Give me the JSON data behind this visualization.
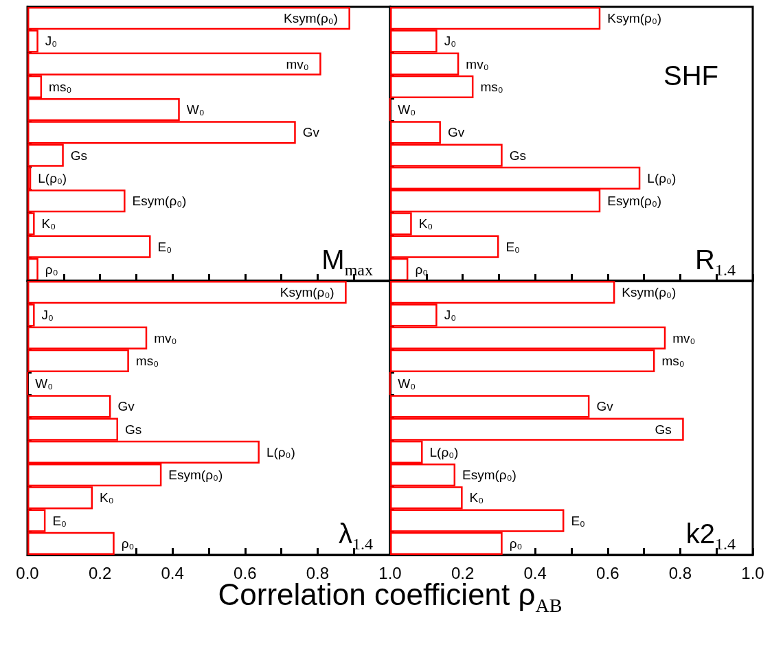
{
  "chart_data": [
    {
      "type": "bar",
      "orientation": "horizontal",
      "title": "M$_{max}$",
      "categories": [
        "Ksym(ρ₀)",
        "J₀",
        "mv₀",
        "ms₀",
        "W₀",
        "Gv",
        "Gs",
        "L(ρ₀)",
        "Esym(ρ₀)",
        "K₀",
        "E₀",
        "ρ₀"
      ],
      "values": [
        0.89,
        0.03,
        0.81,
        0.04,
        0.42,
        0.74,
        0.1,
        0.01,
        0.27,
        0.02,
        0.34,
        0.03
      ],
      "color": "#ff0000",
      "xlim": [
        0,
        1
      ],
      "xticks": [
        {
          "value": 0,
          "label": null
        },
        {
          "value": 0.1,
          "label": null
        },
        {
          "value": 0.2,
          "label": null
        },
        {
          "value": 0.3,
          "label": null
        },
        {
          "value": 0.4,
          "label": null
        },
        {
          "value": 0.5,
          "label": null
        },
        {
          "value": 0.6,
          "label": null
        },
        {
          "value": 0.7,
          "label": null
        },
        {
          "value": 0.8,
          "label": null
        },
        {
          "value": 0.9,
          "label": null
        },
        {
          "value": 1,
          "label": null
        }
      ],
      "tick_labels": false
    },
    {
      "type": "bar",
      "orientation": "horizontal",
      "title": "R$_{1.4}$",
      "annotations": [
        "SHF"
      ],
      "categories": [
        "Ksym(ρ₀)",
        "J₀",
        "mv₀",
        "ms₀",
        "W₀",
        "Gv",
        "Gs",
        "L(ρ₀)",
        "Esym(ρ₀)",
        "K₀",
        "E₀",
        "ρ₀"
      ],
      "values": [
        0.58,
        0.13,
        0.19,
        0.23,
        0.0,
        0.14,
        0.31,
        0.69,
        0.58,
        0.06,
        0.3,
        0.05
      ],
      "color": "#ff0000",
      "xlim": [
        0,
        1
      ],
      "xticks": [
        {
          "value": 0,
          "label": null
        },
        {
          "value": 0.1,
          "label": null
        },
        {
          "value": 0.2,
          "label": null
        },
        {
          "value": 0.3,
          "label": null
        },
        {
          "value": 0.4,
          "label": null
        },
        {
          "value": 0.5,
          "label": null
        },
        {
          "value": 0.6,
          "label": null
        },
        {
          "value": 0.7,
          "label": null
        },
        {
          "value": 0.8,
          "label": null
        },
        {
          "value": 0.9,
          "label": null
        },
        {
          "value": 1,
          "label": null
        }
      ],
      "tick_labels": false
    },
    {
      "type": "bar",
      "orientation": "horizontal",
      "title": "λ$_{1.4}$",
      "xlabel": "Correlation coefficient  ρ$_{AB}$",
      "categories": [
        "Ksym(ρ₀)",
        "J₀",
        "mv₀",
        "ms₀",
        "W₀",
        "Gv",
        "Gs",
        "L(ρ₀)",
        "Esym(ρ₀)",
        "K₀",
        "E₀",
        "ρ₀"
      ],
      "values": [
        0.88,
        0.02,
        0.33,
        0.28,
        0.0,
        0.23,
        0.25,
        0.64,
        0.37,
        0.18,
        0.05,
        0.24
      ],
      "color": "#ff0000",
      "xlim": [
        0,
        1
      ],
      "xticks": [
        {
          "value": 0,
          "label": "0.0"
        },
        {
          "value": 0.1,
          "label": null
        },
        {
          "value": 0.2,
          "label": "0.2"
        },
        {
          "value": 0.3,
          "label": null
        },
        {
          "value": 0.4,
          "label": "0.4"
        },
        {
          "value": 0.5,
          "label": null
        },
        {
          "value": 0.6,
          "label": "0.6"
        },
        {
          "value": 0.7,
          "label": null
        },
        {
          "value": 0.8,
          "label": "0.8"
        },
        {
          "value": 0.9,
          "label": null
        },
        {
          "value": 1,
          "label": "1.0"
        }
      ],
      "tick_labels": "x"
    },
    {
      "type": "bar",
      "orientation": "horizontal",
      "title": "k2$_{1.4}$",
      "categories": [
        "Ksym(ρ₀)",
        "J₀",
        "mv₀",
        "ms₀",
        "W₀",
        "Gv",
        "Gs",
        "L(ρ₀)",
        "Esym(ρ₀)",
        "K₀",
        "E₀",
        "ρ₀"
      ],
      "values": [
        0.62,
        0.13,
        0.76,
        0.73,
        0.0,
        0.55,
        0.81,
        0.09,
        0.18,
        0.2,
        0.48,
        0.31
      ],
      "color": "#ff0000",
      "xlim": [
        0,
        1
      ],
      "xticks": [
        {
          "value": 0,
          "label": null
        },
        {
          "value": 0.1,
          "label": null
        },
        {
          "value": 0.2,
          "label": "0.2"
        },
        {
          "value": 0.3,
          "label": null
        },
        {
          "value": 0.4,
          "label": "0.4"
        },
        {
          "value": 0.5,
          "label": null
        },
        {
          "value": 0.6,
          "label": "0.6"
        },
        {
          "value": 0.7,
          "label": null
        },
        {
          "value": 0.8,
          "label": "0.8"
        },
        {
          "value": 0.9,
          "label": null
        },
        {
          "value": 1,
          "label": "1.0"
        }
      ],
      "tick_labels": "x"
    }
  ]
}
